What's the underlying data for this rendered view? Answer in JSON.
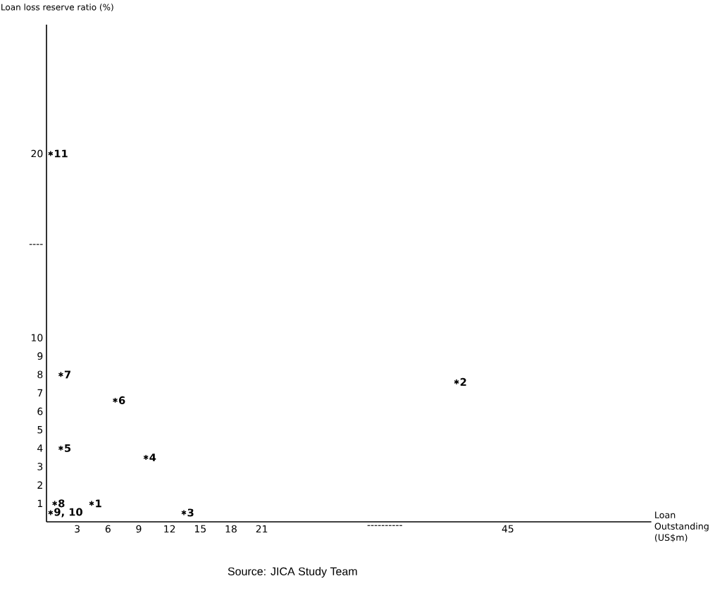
{
  "chart_data": {
    "type": "scatter",
    "ylabel": "Loan loss reserve ratio (%)",
    "xlabel": "Loan Outstanding (US$m)",
    "x": [
      4.4,
      40,
      13.4,
      9.7,
      1.4,
      6.7,
      1.4,
      0.8,
      0.4,
      0.4
    ],
    "values": [
      1,
      7.6,
      0.5,
      3.5,
      4,
      6.6,
      8,
      1,
      0.5,
      20
    ],
    "marker": "cross",
    "annotations": [
      {
        "text": "1",
        "x": 4.4,
        "y": 1
      },
      {
        "text": "2",
        "x": 40,
        "y": 7.6
      },
      {
        "text": "3",
        "x": 13.4,
        "y": 0.5
      },
      {
        "text": "4",
        "x": 9.7,
        "y": 3.5
      },
      {
        "text": "5",
        "x": 1.4,
        "y": 4
      },
      {
        "text": "6",
        "x": 6.7,
        "y": 6.6
      },
      {
        "text": "7",
        "x": 1.4,
        "y": 8
      },
      {
        "text": "8",
        "x": 0.8,
        "y": 1
      },
      {
        "text": "9, 10",
        "x": 0.4,
        "y": 0.5
      },
      {
        "text": "11",
        "x": 0.4,
        "y": 20
      },
      "Source: JICA Study Team"
    ],
    "xlim": [
      0,
      59
    ],
    "ylim": [
      0,
      27
    ],
    "xticks": [
      3,
      6,
      9,
      12,
      15,
      18,
      21,
      {
        "value": 33,
        "label": "----------"
      },
      45
    ],
    "yticks": [
      1,
      2,
      3,
      4,
      5,
      6,
      7,
      8,
      9,
      10,
      {
        "value": 15,
        "label": "----"
      },
      20
    ]
  }
}
